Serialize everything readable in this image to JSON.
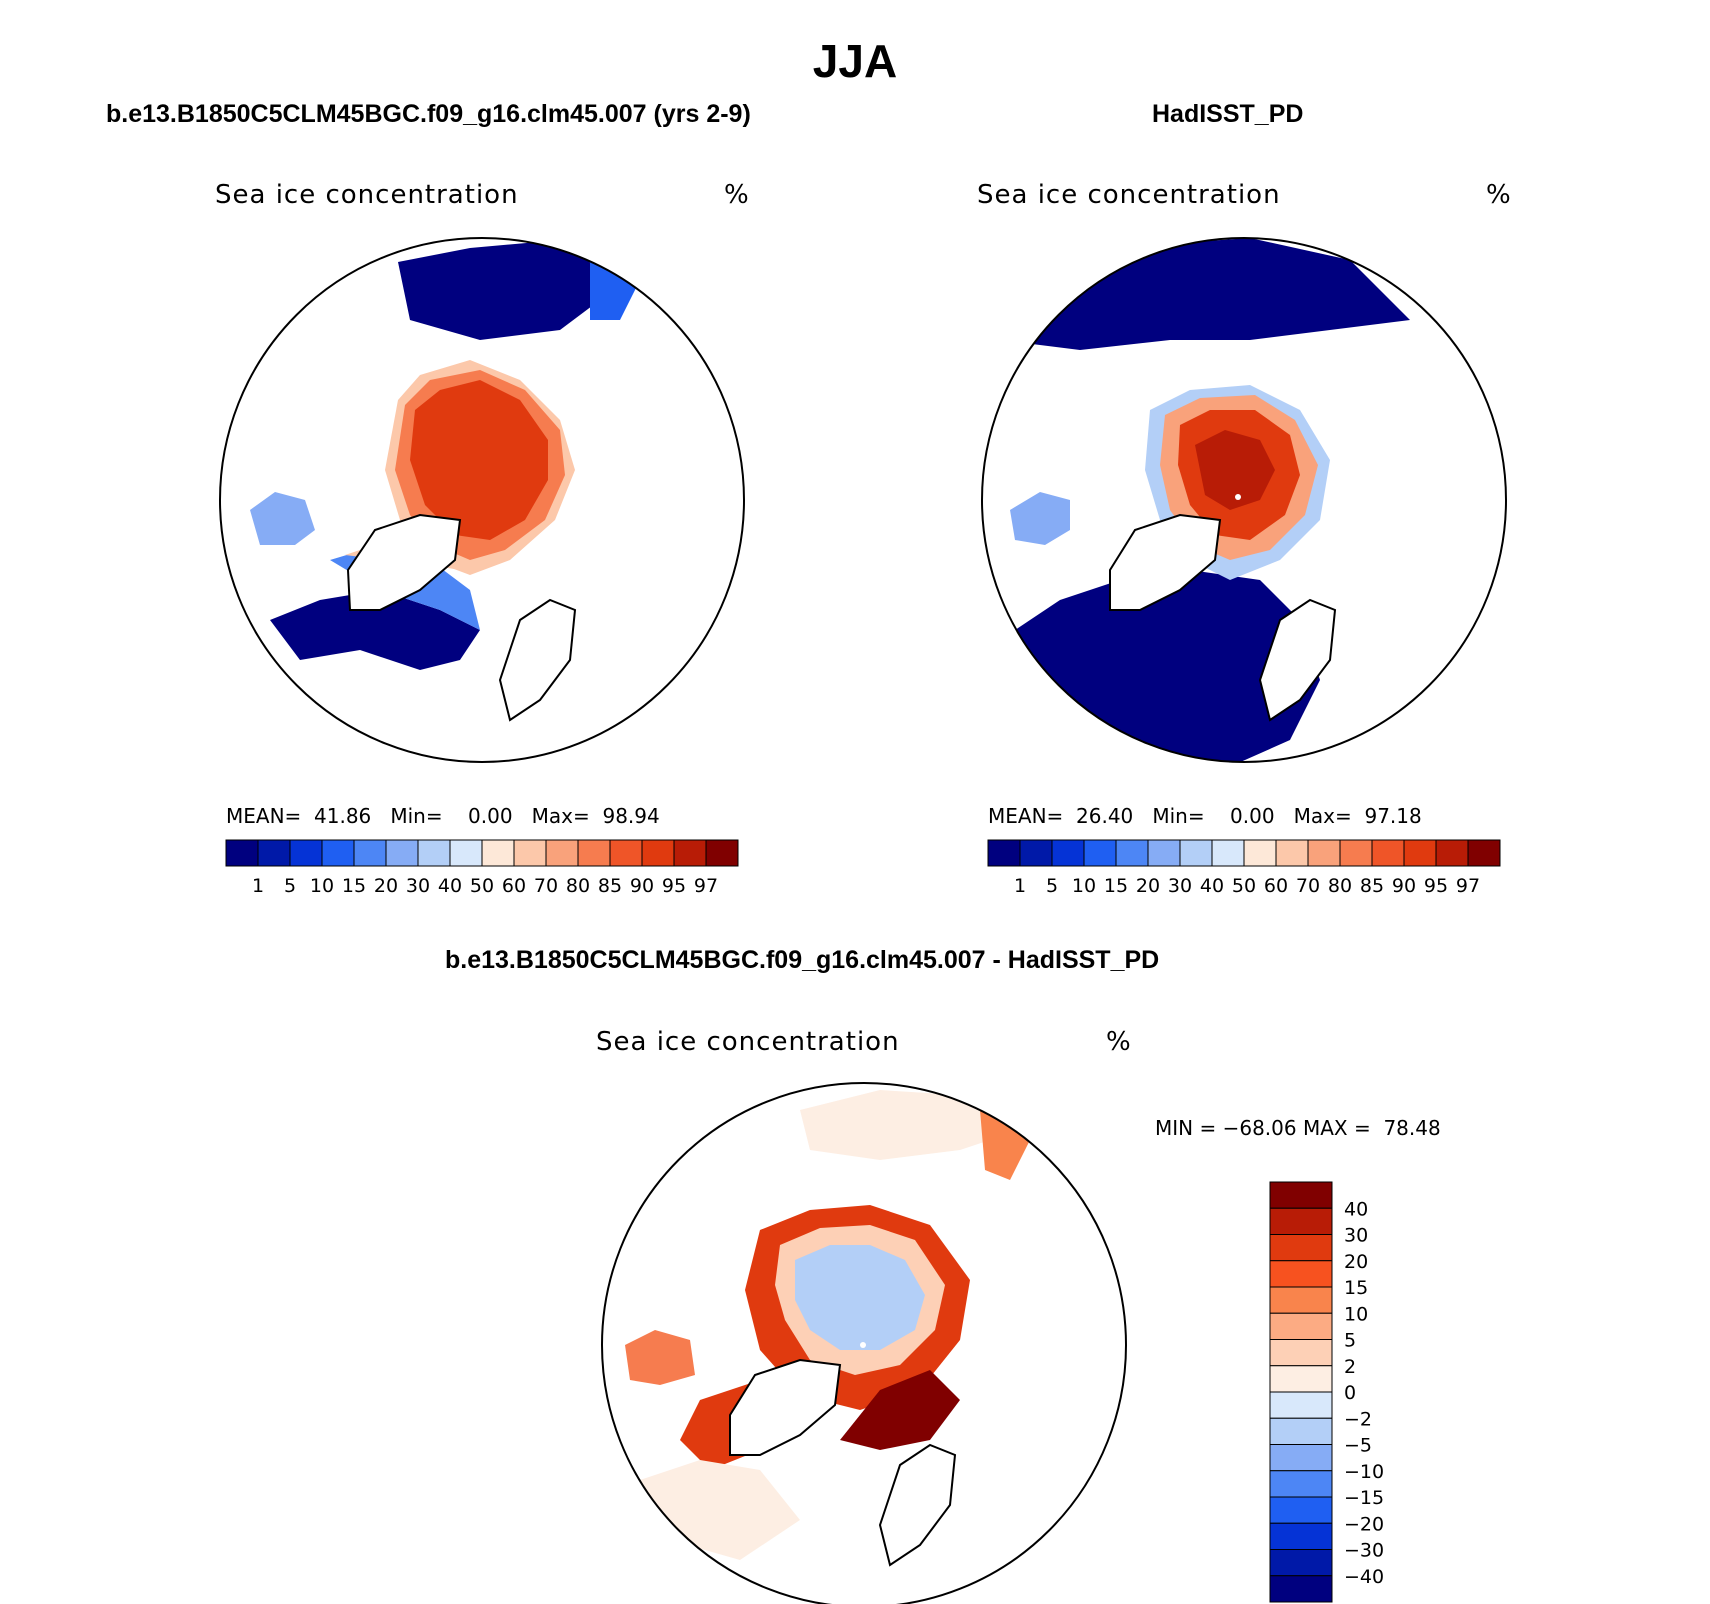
{
  "figure": {
    "season": "JJA",
    "panels": [
      {
        "title": "b.e13.B1850C5CLM45BGC.f09_g16.clm45.007 (yrs 2-9)",
        "variable": "Sea ice concentration",
        "units": "%",
        "stats": {
          "mean_label": "MEAN=",
          "mean": "41.86",
          "min_label": "Min=",
          "min": "0.00",
          "max_label": "Max=",
          "max": "98.94"
        }
      },
      {
        "title": "HadISST_PD",
        "variable": "Sea ice concentration",
        "units": "%",
        "stats": {
          "mean_label": "MEAN=",
          "mean": "26.40",
          "min_label": "Min=",
          "min": "0.00",
          "max_label": "Max=",
          "max": "97.18"
        }
      },
      {
        "title": "b.e13.B1850C5CLM45BGC.f09_g16.clm45.007 - HadISST_PD",
        "variable": "Sea ice concentration",
        "units": "%",
        "stats": {
          "min_label": "MIN =",
          "min": "−68.06",
          "max_label": "MAX =",
          "max": "78.48"
        }
      }
    ]
  },
  "chart_data": [
    {
      "type": "heatmap",
      "projection": "north polar stereographic",
      "title": "b.e13.B1850C5CLM45BGC.f09_g16.clm45.007 (yrs 2-9)",
      "variable": "Sea ice concentration",
      "units": "%",
      "mean": 41.86,
      "min": 0.0,
      "max": 98.94,
      "colorbar_levels": [
        "1",
        "5",
        "10",
        "15",
        "20",
        "30",
        "40",
        "50",
        "60",
        "70",
        "80",
        "85",
        "90",
        "95",
        "97"
      ],
      "colorbar_colors": [
        "#00007f",
        "#0019a8",
        "#0533d6",
        "#1f5ff2",
        "#4d86f5",
        "#86acf5",
        "#b3cff7",
        "#d8e8fb",
        "#fde8d8",
        "#fcc8aa",
        "#f9a27b",
        "#f67c4f",
        "#ef5528",
        "#e03a0f",
        "#b81c06",
        "#800000"
      ]
    },
    {
      "type": "heatmap",
      "projection": "north polar stereographic",
      "title": "HadISST_PD",
      "variable": "Sea ice concentration",
      "units": "%",
      "mean": 26.4,
      "min": 0.0,
      "max": 97.18,
      "colorbar_levels": [
        "1",
        "5",
        "10",
        "15",
        "20",
        "30",
        "40",
        "50",
        "60",
        "70",
        "80",
        "85",
        "90",
        "95",
        "97"
      ],
      "colorbar_colors": [
        "#00007f",
        "#0019a8",
        "#0533d6",
        "#1f5ff2",
        "#4d86f5",
        "#86acf5",
        "#b3cff7",
        "#d8e8fb",
        "#fde8d8",
        "#fcc8aa",
        "#f9a27b",
        "#f67c4f",
        "#ef5528",
        "#e03a0f",
        "#b81c06",
        "#800000"
      ]
    },
    {
      "type": "heatmap",
      "projection": "north polar stereographic",
      "title": "b.e13.B1850C5CLM45BGC.f09_g16.clm45.007 - HadISST_PD",
      "variable": "Sea ice concentration",
      "units": "%",
      "min": -68.06,
      "max": 78.48,
      "colorbar_levels": [
        "40",
        "30",
        "20",
        "15",
        "10",
        "5",
        "2",
        "0",
        "−2",
        "−5",
        "−10",
        "−15",
        "−20",
        "−30",
        "−40"
      ],
      "colorbar_colors": [
        "#800000",
        "#b81c06",
        "#e03a0f",
        "#f7521f",
        "#f9844c",
        "#fcab83",
        "#fdd0b6",
        "#fdeee3",
        "#d8e8fb",
        "#b3cff7",
        "#86acf5",
        "#4d86f5",
        "#1f5ff2",
        "#0533d6",
        "#0019a8",
        "#00007f"
      ]
    }
  ]
}
